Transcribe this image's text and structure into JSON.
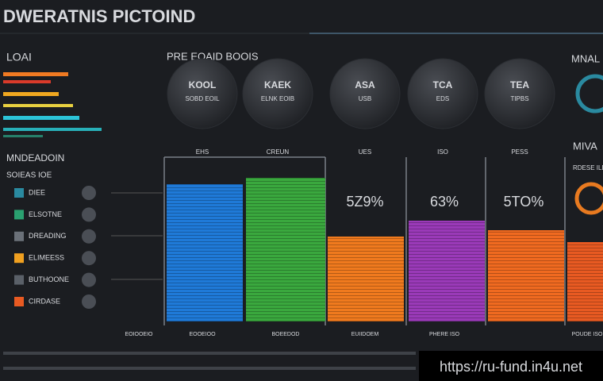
{
  "header": {
    "title": "DWERATNIS PICTOIND"
  },
  "left_panel": {
    "title": "LOAI",
    "subtitle": "MNDEADOIN",
    "caption": "SOIEAS IOE",
    "rows": [
      "DIEE",
      "ELSOTNE",
      "DREADING",
      "ELIMEESS",
      "BUTHOONE",
      "CIRDASE"
    ]
  },
  "center": {
    "title": "PRE EOAID BOOIS",
    "circles": [
      {
        "label": "KOOL",
        "sub": "SOBD EOIL"
      },
      {
        "label": "KAEK",
        "sub": "ELNK EOIB"
      },
      {
        "label": "ASA",
        "sub": "USB"
      },
      {
        "label": "TCA",
        "sub": "EDS"
      },
      {
        "label": "TEA",
        "sub": "TIPBS"
      }
    ],
    "column_heads": [
      "EHS",
      "CREUN",
      "UES",
      "ISO",
      "PESS"
    ],
    "column_values": [
      "5Z9%",
      "63%",
      "5TO%"
    ],
    "column_labels": [
      "EOIOOEIO",
      "EOOEIOO",
      "BOEEDOD",
      "EUIIDOEM",
      "PHERE ISO",
      "POUDE ISO"
    ]
  },
  "right_panel": {
    "title": "MNAL",
    "subtitle": "MIVA",
    "caption": "RDESE ILDE"
  },
  "footer": {
    "url": "https://ru-fund.in4u.net"
  }
}
